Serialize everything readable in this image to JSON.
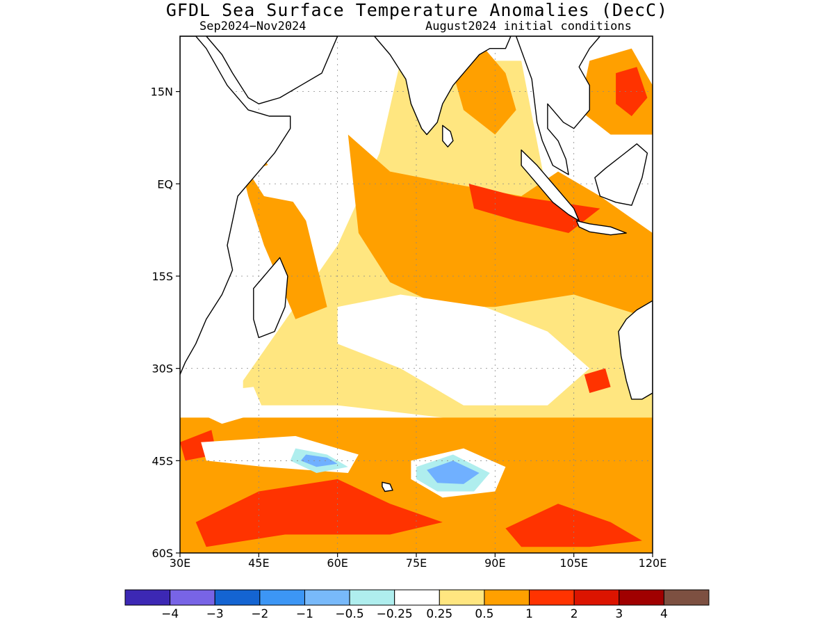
{
  "title": "GFDL Sea Surface Temperature Anomalies (DecC)",
  "subtitle_left": "Sep2024−Nov2024",
  "subtitle_right": "August2024 initial conditions",
  "map": {
    "lon_range": [
      30,
      120
    ],
    "lat_range": [
      -60,
      24
    ],
    "lon_ticks": [
      {
        "value": 30,
        "label": "30E"
      },
      {
        "value": 45,
        "label": "45E"
      },
      {
        "value": 60,
        "label": "60E"
      },
      {
        "value": 75,
        "label": "75E"
      },
      {
        "value": 90,
        "label": "90E"
      },
      {
        "value": 105,
        "label": "105E"
      },
      {
        "value": 120,
        "label": "120E"
      }
    ],
    "lat_ticks": [
      {
        "value": 15,
        "label": "15N"
      },
      {
        "value": 0,
        "label": "EQ"
      },
      {
        "value": -15,
        "label": "15S"
      },
      {
        "value": -30,
        "label": "30S"
      },
      {
        "value": -45,
        "label": "45S"
      },
      {
        "value": -60,
        "label": "60S"
      }
    ],
    "grid": true,
    "regions": [
      {
        "level": "0.25-0.5",
        "color": "#ffe680",
        "points": [
          [
            42,
            -32
          ],
          [
            60,
            -10
          ],
          [
            68,
            5
          ],
          [
            72,
            20
          ],
          [
            95,
            20
          ],
          [
            100,
            -2
          ],
          [
            120,
            -20
          ],
          [
            120,
            -40
          ],
          [
            100,
            -40
          ],
          [
            80,
            -38
          ],
          [
            60,
            -36
          ],
          [
            42,
            -36
          ]
        ]
      },
      {
        "level": "0.5-1",
        "color": "#ffa000",
        "points": [
          [
            62,
            8
          ],
          [
            70,
            2
          ],
          [
            82,
            0
          ],
          [
            95,
            -2
          ],
          [
            102,
            2
          ],
          [
            110,
            -2
          ],
          [
            120,
            -8
          ],
          [
            120,
            -22
          ],
          [
            105,
            -18
          ],
          [
            90,
            -20
          ],
          [
            80,
            -20
          ],
          [
            70,
            -16
          ],
          [
            64,
            -8
          ]
        ]
      },
      {
        "level": "0.5-1",
        "color": "#ffa000",
        "points": [
          [
            88,
            22
          ],
          [
            92,
            18
          ],
          [
            94,
            12
          ],
          [
            90,
            8
          ],
          [
            84,
            12
          ],
          [
            82,
            18
          ]
        ]
      },
      {
        "level": "0.5-1",
        "color": "#ffa000",
        "points": [
          [
            108,
            20
          ],
          [
            116,
            22
          ],
          [
            120,
            16
          ],
          [
            120,
            8
          ],
          [
            112,
            8
          ],
          [
            106,
            12
          ]
        ]
      },
      {
        "level": "0.5-1",
        "color": "#ffa000",
        "points": [
          [
            41,
            5
          ],
          [
            46,
            4
          ],
          [
            54,
            -6
          ],
          [
            58,
            -20
          ],
          [
            52,
            -22
          ],
          [
            46,
            -10
          ],
          [
            43,
            -2
          ]
        ]
      },
      {
        "level": "0.5-1",
        "color": "#ffa000",
        "points": [
          [
            30,
            -38
          ],
          [
            120,
            -38
          ],
          [
            120,
            -60
          ],
          [
            30,
            -60
          ]
        ]
      },
      {
        "level": "1-2",
        "color": "#ff3300",
        "points": [
          [
            85,
            0
          ],
          [
            94,
            -2
          ],
          [
            102,
            -3
          ],
          [
            110,
            -4
          ],
          [
            104,
            -8
          ],
          [
            94,
            -6
          ],
          [
            86,
            -4
          ]
        ]
      },
      {
        "level": "1-2",
        "color": "#ff3300",
        "points": [
          [
            113,
            18
          ],
          [
            117,
            19
          ],
          [
            119,
            14
          ],
          [
            116,
            11
          ],
          [
            113,
            13
          ]
        ]
      },
      {
        "level": "1-2",
        "color": "#ff3300",
        "points": [
          [
            33,
            -55
          ],
          [
            45,
            -50
          ],
          [
            60,
            -48
          ],
          [
            70,
            -52
          ],
          [
            80,
            -55
          ],
          [
            70,
            -57
          ],
          [
            50,
            -57
          ],
          [
            35,
            -59
          ]
        ]
      },
      {
        "level": "1-2",
        "color": "#ff3300",
        "points": [
          [
            92,
            -56
          ],
          [
            102,
            -52
          ],
          [
            112,
            -55
          ],
          [
            118,
            -58
          ],
          [
            108,
            -59
          ],
          [
            95,
            -59
          ]
        ]
      },
      {
        "level": "1-2",
        "color": "#ff3300",
        "points": [
          [
            86,
            -31
          ],
          [
            90,
            -30
          ],
          [
            91,
            -33
          ],
          [
            87,
            -34
          ]
        ]
      },
      {
        "level": "1-2",
        "color": "#ff3300",
        "points": [
          [
            107,
            -31
          ],
          [
            111,
            -30
          ],
          [
            112,
            -33
          ],
          [
            108,
            -34
          ]
        ]
      },
      {
        "level": "1-2",
        "color": "#ff3300",
        "points": [
          [
            30,
            -42
          ],
          [
            36,
            -40
          ],
          [
            37,
            -44
          ],
          [
            31,
            -45
          ]
        ]
      },
      {
        "level": "-0.25-0.25",
        "color": "#ffffff",
        "points": [
          [
            60,
            -20
          ],
          [
            72,
            -18
          ],
          [
            88,
            -20
          ],
          [
            100,
            -24
          ],
          [
            108,
            -30
          ],
          [
            100,
            -36
          ],
          [
            84,
            -36
          ],
          [
            72,
            -30
          ],
          [
            60,
            -26
          ]
        ]
      },
      {
        "level": "-0.25-0.25",
        "color": "#ffffff",
        "points": [
          [
            43,
            2
          ],
          [
            50,
            4
          ],
          [
            55,
            0
          ],
          [
            52,
            -3
          ],
          [
            46,
            -2
          ]
        ]
      },
      {
        "level": "-0.25-0.25",
        "color": "#ffffff",
        "points": [
          [
            34,
            -34
          ],
          [
            44,
            -33
          ],
          [
            46,
            -37
          ],
          [
            38,
            -39
          ],
          [
            33,
            -37
          ]
        ]
      },
      {
        "level": "-0.25-0.25",
        "color": "#ffffff",
        "points": [
          [
            34,
            -42
          ],
          [
            52,
            -41
          ],
          [
            64,
            -44
          ],
          [
            62,
            -47
          ],
          [
            46,
            -46
          ],
          [
            35,
            -45
          ]
        ]
      },
      {
        "level": "-0.25-0.25",
        "color": "#ffffff",
        "points": [
          [
            74,
            -45
          ],
          [
            84,
            -43
          ],
          [
            92,
            -46
          ],
          [
            90,
            -50
          ],
          [
            80,
            -51
          ],
          [
            74,
            -48
          ]
        ]
      },
      {
        "level": "-0.5--0.25",
        "color": "#afeeee",
        "points": [
          [
            52,
            -43
          ],
          [
            58,
            -44
          ],
          [
            62,
            -46
          ],
          [
            56,
            -47
          ],
          [
            51,
            -45
          ]
        ]
      },
      {
        "level": "-0.5--0.25",
        "color": "#afeeee",
        "points": [
          [
            75,
            -46
          ],
          [
            82,
            -44
          ],
          [
            89,
            -47
          ],
          [
            86,
            -50
          ],
          [
            79,
            -50
          ],
          [
            75,
            -48
          ]
        ]
      },
      {
        "level": "-1--0.5",
        "color": "#70b0ff",
        "points": [
          [
            77,
            -46.5
          ],
          [
            82,
            -45
          ],
          [
            87,
            -47
          ],
          [
            84,
            -48.8
          ],
          [
            79,
            -48.6
          ]
        ]
      },
      {
        "level": "-1--0.5",
        "color": "#70b0ff",
        "points": [
          [
            54,
            -44
          ],
          [
            58,
            -44.5
          ],
          [
            60,
            -45.5
          ],
          [
            56,
            -46
          ],
          [
            53,
            -45
          ]
        ]
      }
    ],
    "land": [
      {
        "name": "Africa",
        "points": [
          [
            30,
            24
          ],
          [
            33,
            24
          ],
          [
            35,
            22
          ],
          [
            37,
            19
          ],
          [
            39,
            16
          ],
          [
            43,
            12
          ],
          [
            47,
            11
          ],
          [
            51,
            11
          ],
          [
            51,
            9
          ],
          [
            48,
            5
          ],
          [
            44,
            1
          ],
          [
            41,
            -2
          ],
          [
            40,
            -6
          ],
          [
            39,
            -10
          ],
          [
            40,
            -14
          ],
          [
            38,
            -18
          ],
          [
            35,
            -22
          ],
          [
            33,
            -26
          ],
          [
            31,
            -29
          ],
          [
            30,
            -31
          ]
        ]
      },
      {
        "name": "Arabia",
        "points": [
          [
            35,
            24
          ],
          [
            38,
            21
          ],
          [
            40,
            18
          ],
          [
            43,
            14
          ],
          [
            45,
            13
          ],
          [
            49,
            14
          ],
          [
            53,
            16
          ],
          [
            57,
            18
          ],
          [
            59,
            22
          ],
          [
            60,
            24
          ]
        ]
      },
      {
        "name": "India",
        "points": [
          [
            67,
            24
          ],
          [
            70,
            21
          ],
          [
            73,
            17
          ],
          [
            74,
            13
          ],
          [
            76,
            9
          ],
          [
            77,
            8
          ],
          [
            79,
            10
          ],
          [
            80,
            13
          ],
          [
            82,
            16
          ],
          [
            85,
            19
          ],
          [
            87,
            21
          ],
          [
            89,
            22
          ],
          [
            92,
            22
          ],
          [
            93,
            24
          ]
        ]
      },
      {
        "name": "Sri Lanka",
        "points": [
          [
            80,
            9.5
          ],
          [
            81.5,
            8.5
          ],
          [
            82,
            7
          ],
          [
            81,
            6
          ],
          [
            80,
            7
          ]
        ]
      },
      {
        "name": "Madagascar",
        "points": [
          [
            49,
            -12
          ],
          [
            50.5,
            -15
          ],
          [
            50,
            -20
          ],
          [
            48,
            -24
          ],
          [
            45,
            -25
          ],
          [
            44,
            -22
          ],
          [
            44,
            -17
          ],
          [
            46,
            -15
          ]
        ]
      },
      {
        "name": "Southeast Asia",
        "points": [
          [
            94,
            24
          ],
          [
            97,
            17
          ],
          [
            98,
            10
          ],
          [
            99,
            7
          ],
          [
            101,
            3
          ],
          [
            104,
            1.5
          ],
          [
            103.5,
            4
          ],
          [
            102,
            7
          ],
          [
            100,
            9
          ],
          [
            100,
            13
          ],
          [
            103,
            10
          ],
          [
            105,
            9
          ],
          [
            108,
            12
          ],
          [
            108,
            16
          ],
          [
            106,
            19
          ],
          [
            108,
            22
          ],
          [
            110,
            24
          ]
        ]
      },
      {
        "name": "Sumatra",
        "points": [
          [
            95,
            5.5
          ],
          [
            98,
            3
          ],
          [
            102,
            -1
          ],
          [
            105,
            -4
          ],
          [
            106,
            -6
          ],
          [
            104,
            -5
          ],
          [
            101,
            -3
          ],
          [
            98,
            0
          ],
          [
            95,
            3
          ]
        ]
      },
      {
        "name": "Java",
        "points": [
          [
            105.5,
            -6
          ],
          [
            108,
            -6.5
          ],
          [
            112,
            -7
          ],
          [
            115,
            -8
          ],
          [
            112,
            -8.3
          ],
          [
            108,
            -7.8
          ],
          [
            106,
            -7
          ]
        ]
      },
      {
        "name": "Borneo",
        "points": [
          [
            109,
            1
          ],
          [
            111,
            2.5
          ],
          [
            114,
            4.5
          ],
          [
            117,
            6.5
          ],
          [
            119,
            5
          ],
          [
            118,
            1
          ],
          [
            116,
            -3.5
          ],
          [
            113,
            -3
          ],
          [
            110,
            -2
          ]
        ]
      },
      {
        "name": "Australia",
        "points": [
          [
            120,
            -19
          ],
          [
            117,
            -20.5
          ],
          [
            115,
            -22
          ],
          [
            113.5,
            -24
          ],
          [
            114,
            -28
          ],
          [
            115,
            -32
          ],
          [
            116,
            -35
          ],
          [
            118,
            -35
          ],
          [
            120,
            -34
          ]
        ]
      },
      {
        "name": "Kerguelen",
        "points": [
          [
            68.5,
            -48.5
          ],
          [
            70,
            -48.8
          ],
          [
            70.5,
            -49.8
          ],
          [
            69,
            -50
          ],
          [
            68.5,
            -49.2
          ]
        ]
      }
    ]
  },
  "colorbar": {
    "colors": [
      "#3c28b4",
      "#7864e6",
      "#1464d2",
      "#3c96f5",
      "#78b9fa",
      "#afeeee",
      "#ffffff",
      "#ffe680",
      "#ffa000",
      "#ff3300",
      "#dc1400",
      "#a00000",
      "#7d5041"
    ],
    "labels": [
      "−4",
      "−3",
      "−2",
      "−1",
      "−0.5",
      "−0.25",
      "0.25",
      "0.5",
      "1",
      "2",
      "3",
      "4"
    ]
  }
}
